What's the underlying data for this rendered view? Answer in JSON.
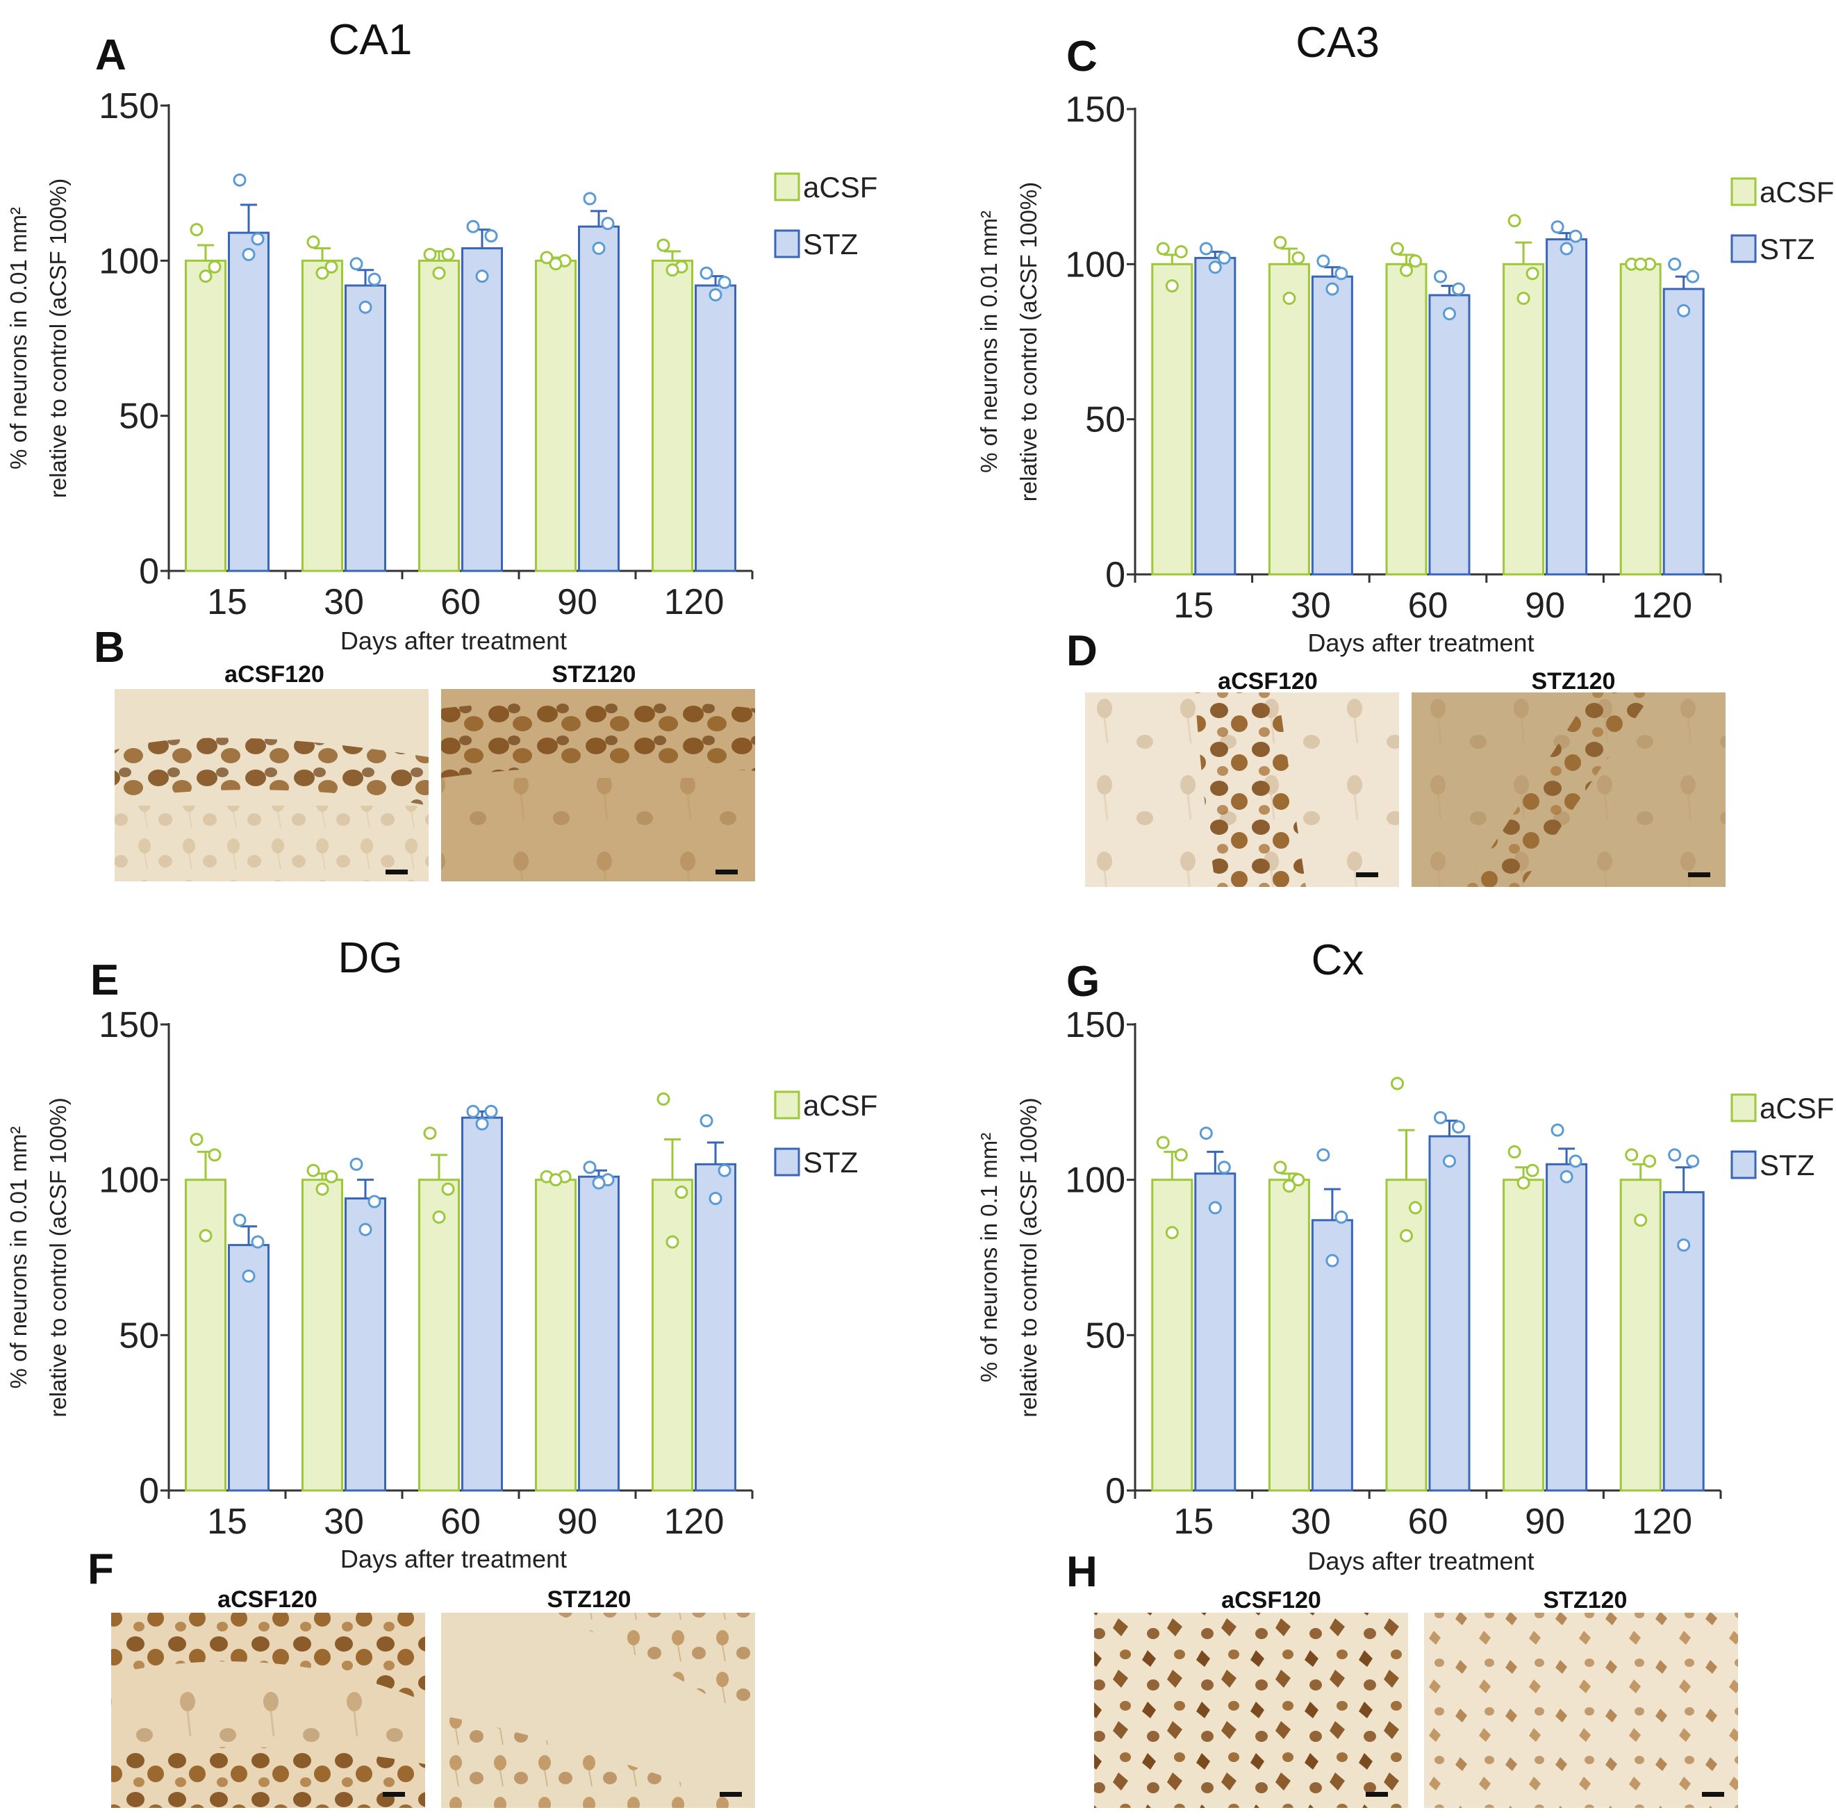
{
  "colors": {
    "acsf_fill": "#e8f1c8",
    "acsf_stroke": "#9dc83a",
    "stz_fill": "#cad9f1",
    "stz_stroke": "#3a66b8",
    "stz_point": "#5b9bd5",
    "axis": "#333333"
  },
  "chart_data": [
    {
      "type": "bar",
      "panel": "A",
      "title": "CA1",
      "xlabel": "Days after treatment",
      "ylabel": [
        "% of neurons in 0.01 mm²",
        "relative to control (aCSF 100%)"
      ],
      "ylim": [
        0,
        150
      ],
      "yticks": [
        0,
        50,
        100,
        150
      ],
      "categories": [
        "15",
        "30",
        "60",
        "90",
        "120"
      ],
      "series": [
        {
          "name": "aCSF",
          "values": [
            100,
            100,
            100,
            100,
            100
          ],
          "sem": [
            5,
            4,
            3,
            1,
            3
          ],
          "points": [
            [
              110,
              98,
              95
            ],
            [
              106,
              98,
              96
            ],
            [
              102,
              102,
              96
            ],
            [
              101,
              100,
              99
            ],
            [
              105,
              98,
              97
            ]
          ]
        },
        {
          "name": "STZ",
          "values": [
            109,
            92,
            104,
            111,
            92
          ],
          "sem": [
            9,
            5,
            6,
            5,
            3
          ],
          "points": [
            [
              126,
              107,
              102
            ],
            [
              99,
              94,
              85
            ],
            [
              111,
              108,
              95
            ],
            [
              120,
              112,
              104
            ],
            [
              96,
              93,
              89
            ]
          ]
        }
      ]
    },
    {
      "type": "bar",
      "panel": "C",
      "title": "CA3",
      "xlabel": "Days after treatment",
      "ylabel": [
        "% of neurons in 0.01 mm²",
        "relative to control (aCSF 100%)"
      ],
      "ylim": [
        0,
        150
      ],
      "yticks": [
        0,
        50,
        100,
        150
      ],
      "categories": [
        "15",
        "30",
        "60",
        "90",
        "120"
      ],
      "series": [
        {
          "name": "aCSF",
          "values": [
            100,
            100,
            100,
            100,
            100
          ],
          "sem": [
            3,
            5,
            3,
            7,
            1
          ],
          "points": [
            [
              105,
              104,
              93
            ],
            [
              107,
              102,
              89
            ],
            [
              105,
              101,
              98
            ],
            [
              114,
              97,
              89
            ],
            [
              100,
              100,
              100
            ]
          ]
        },
        {
          "name": "STZ",
          "values": [
            102,
            96,
            90,
            108,
            92
          ],
          "sem": [
            2,
            3,
            3,
            2,
            4
          ],
          "points": [
            [
              105,
              102,
              99
            ],
            [
              101,
              97,
              92
            ],
            [
              96,
              92,
              84
            ],
            [
              112,
              109,
              105
            ],
            [
              100,
              96,
              85
            ]
          ]
        }
      ]
    },
    {
      "type": "bar",
      "panel": "E",
      "title": "DG",
      "xlabel": "Days after treatment",
      "ylabel": [
        "% of neurons in 0.01 mm²",
        "relative to control (aCSF 100%)"
      ],
      "ylim": [
        0,
        150
      ],
      "yticks": [
        0,
        50,
        100,
        150
      ],
      "categories": [
        "15",
        "30",
        "60",
        "90",
        "120"
      ],
      "series": [
        {
          "name": "aCSF",
          "values": [
            100,
            100,
            100,
            100,
            100
          ],
          "sem": [
            9,
            2,
            8,
            1,
            13
          ],
          "points": [
            [
              113,
              108,
              82
            ],
            [
              103,
              101,
              97
            ],
            [
              115,
              97,
              88
            ],
            [
              101,
              101,
              100
            ],
            [
              126,
              96,
              80
            ]
          ]
        },
        {
          "name": "STZ",
          "values": [
            79,
            94,
            120,
            101,
            105
          ],
          "sem": [
            6,
            6,
            2,
            2,
            7
          ],
          "points": [
            [
              87,
              80,
              69
            ],
            [
              105,
              93,
              84
            ],
            [
              122,
              122,
              118
            ],
            [
              104,
              100,
              99
            ],
            [
              119,
              103,
              94
            ]
          ]
        }
      ]
    },
    {
      "type": "bar",
      "panel": "G",
      "title": "Cx",
      "xlabel": "Days after treatment",
      "ylabel": [
        "% of neurons in 0.1 mm²",
        "relative to control (aCSF 100%)"
      ],
      "ylim": [
        0,
        150
      ],
      "yticks": [
        0,
        50,
        100,
        150
      ],
      "categories": [
        "15",
        "30",
        "60",
        "90",
        "120"
      ],
      "series": [
        {
          "name": "aCSF",
          "values": [
            100,
            100,
            100,
            100,
            100
          ],
          "sem": [
            9,
            2,
            16,
            4,
            5
          ],
          "points": [
            [
              112,
              108,
              83
            ],
            [
              104,
              100,
              98
            ],
            [
              131,
              91,
              82
            ],
            [
              109,
              103,
              99
            ],
            [
              108,
              106,
              87
            ]
          ]
        },
        {
          "name": "STZ",
          "values": [
            102,
            87,
            114,
            105,
            96
          ],
          "sem": [
            7,
            10,
            5,
            5,
            8
          ],
          "points": [
            [
              115,
              104,
              91
            ],
            [
              108,
              88,
              74
            ],
            [
              120,
              117,
              106
            ],
            [
              116,
              106,
              101
            ],
            [
              108,
              106,
              79
            ]
          ]
        }
      ]
    }
  ],
  "micrographs": [
    {
      "panel": "B",
      "left_label": "aCSF120",
      "right_label": "STZ120"
    },
    {
      "panel": "D",
      "left_label": "aCSF120",
      "right_label": "STZ120"
    },
    {
      "panel": "F",
      "left_label": "aCSF120",
      "right_label": "STZ120"
    },
    {
      "panel": "H",
      "left_label": "aCSF120",
      "right_label": "STZ120"
    }
  ]
}
